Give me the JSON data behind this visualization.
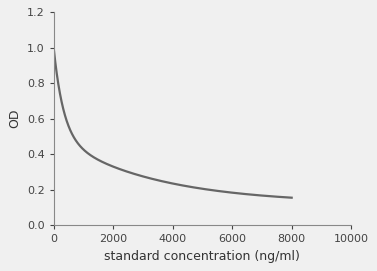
{
  "xlabel": "standard concentration (ng/ml)",
  "ylabel": "OD",
  "xlim": [
    0,
    10000
  ],
  "ylim": [
    0,
    1.2
  ],
  "xticks": [
    0,
    2000,
    4000,
    6000,
    8000,
    10000
  ],
  "yticks": [
    0,
    0.2,
    0.4,
    0.6,
    0.8,
    1.0,
    1.2
  ],
  "line_color": "#666666",
  "line_width": 1.6,
  "a": 0.88,
  "b": 0.0035,
  "c": 0.12,
  "background_color": "#f0f0f0",
  "font_size_label": 9,
  "font_size_tick": 8,
  "spine_color": "#888888"
}
